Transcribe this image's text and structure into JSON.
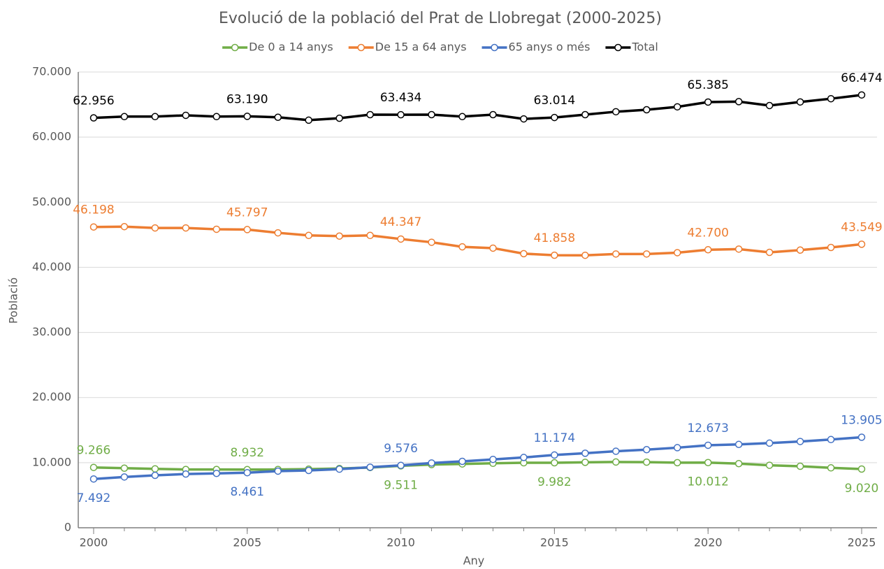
{
  "chart_data": {
    "type": "line",
    "title": "Evolució de la població del Prat de Llobregat (2000-2025)",
    "xlabel": "Any",
    "ylabel": "Població",
    "x": [
      2000,
      2001,
      2002,
      2003,
      2004,
      2005,
      2006,
      2007,
      2008,
      2009,
      2010,
      2011,
      2012,
      2013,
      2014,
      2015,
      2016,
      2017,
      2018,
      2019,
      2020,
      2021,
      2022,
      2023,
      2024,
      2025
    ],
    "xlim": [
      1999.5,
      2025.5
    ],
    "xticks": [
      2000,
      2005,
      2010,
      2015,
      2020,
      2025
    ],
    "ylim": [
      0,
      70000
    ],
    "yticks": [
      0,
      {
        "value": 10000,
        "label": "10.000"
      },
      {
        "value": 20000,
        "label": "20.000"
      },
      {
        "value": 30000,
        "label": "30.000"
      },
      {
        "value": 40000,
        "label": "40.000"
      },
      {
        "value": 50000,
        "label": "50.000"
      },
      {
        "value": 60000,
        "label": "60.000"
      },
      {
        "value": 70000,
        "label": "70.000"
      }
    ],
    "grid": true,
    "legend": "top",
    "series": [
      {
        "name": "De 0 a 14 anys",
        "color": "#70ad47",
        "values": [
          9266,
          9150,
          9050,
          8950,
          8950,
          8932,
          8950,
          9000,
          9100,
          9250,
          9511,
          9700,
          9800,
          9900,
          9980,
          9982,
          10050,
          10100,
          10080,
          10000,
          10012,
          9850,
          9600,
          9450,
          9200,
          9020
        ],
        "value_labels": [
          "9.266",
          null,
          null,
          null,
          null,
          "8.932",
          null,
          null,
          null,
          null,
          "9.511",
          null,
          null,
          null,
          null,
          "9.982",
          null,
          null,
          null,
          null,
          "10.012",
          null,
          null,
          null,
          null,
          "9.020"
        ]
      },
      {
        "name": "De 15 a 64 anys",
        "color": "#ed7d31",
        "values": [
          46198,
          46250,
          46050,
          46050,
          45850,
          45797,
          45300,
          44900,
          44800,
          44900,
          44347,
          43850,
          43150,
          42950,
          42100,
          41858,
          41850,
          42050,
          42050,
          42250,
          42700,
          42800,
          42300,
          42650,
          43050,
          43549
        ],
        "value_labels": [
          "46.198",
          null,
          null,
          null,
          null,
          "45.797",
          null,
          null,
          null,
          null,
          "44.347",
          null,
          null,
          null,
          null,
          "41.858",
          null,
          null,
          null,
          null,
          "42.700",
          null,
          null,
          null,
          null,
          "43.549"
        ]
      },
      {
        "name": "65 anys o més",
        "color": "#4472c4",
        "values": [
          7492,
          7800,
          8050,
          8250,
          8350,
          8461,
          8700,
          8800,
          9000,
          9300,
          9576,
          9950,
          10200,
          10500,
          10800,
          11174,
          11450,
          11750,
          12000,
          12300,
          12673,
          12800,
          13000,
          13250,
          13550,
          13905
        ],
        "value_labels": [
          "7.492",
          null,
          null,
          null,
          null,
          "8.461",
          null,
          null,
          null,
          null,
          "9.576",
          null,
          null,
          null,
          null,
          "11.174",
          null,
          null,
          null,
          null,
          "12.673",
          null,
          null,
          null,
          null,
          "13.905"
        ]
      },
      {
        "name": "Total",
        "color": "#000000",
        "values": [
          62956,
          63150,
          63150,
          63350,
          63150,
          63190,
          63050,
          62600,
          62900,
          63450,
          63434,
          63450,
          63150,
          63450,
          62800,
          63014,
          63450,
          63900,
          64200,
          64650,
          65385,
          65450,
          64850,
          65400,
          65900,
          66474
        ],
        "value_labels": [
          "62.956",
          null,
          null,
          null,
          null,
          "63.190",
          null,
          null,
          null,
          null,
          "63.434",
          null,
          null,
          null,
          null,
          "63.014",
          null,
          null,
          null,
          null,
          "65.385",
          null,
          null,
          null,
          null,
          "66.474"
        ]
      }
    ]
  }
}
